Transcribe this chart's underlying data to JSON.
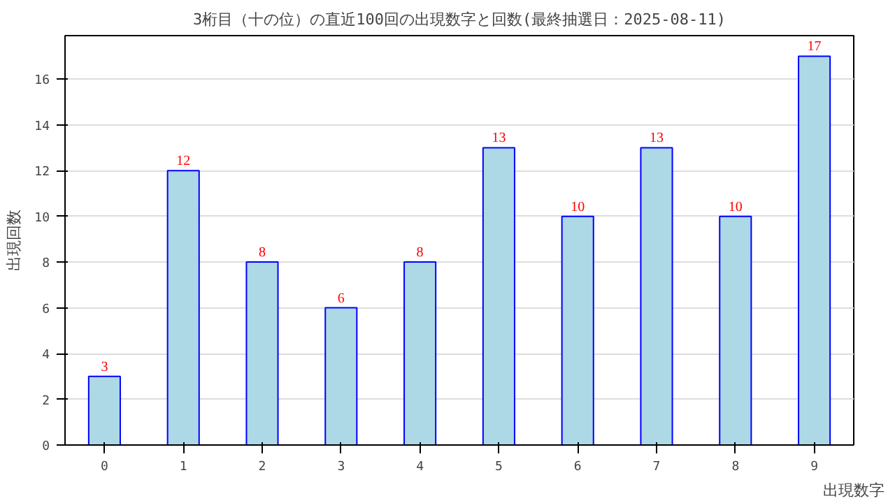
{
  "chart_data": {
    "type": "bar",
    "title": "3桁目（十の位）の直近100回の出現数字と回数(最終抽選日：2025-08-11)",
    "xlabel": "出現数字",
    "ylabel": "出現回数",
    "categories": [
      "0",
      "1",
      "2",
      "3",
      "4",
      "5",
      "6",
      "7",
      "8",
      "9"
    ],
    "values": [
      3,
      12,
      8,
      6,
      8,
      13,
      10,
      13,
      10,
      17
    ],
    "color": "#add8e6",
    "ylim": [
      0,
      17.9
    ],
    "yticks": [
      0,
      2,
      4,
      6,
      8,
      10,
      12,
      14,
      16
    ],
    "grid": "y",
    "data_labels": true
  }
}
